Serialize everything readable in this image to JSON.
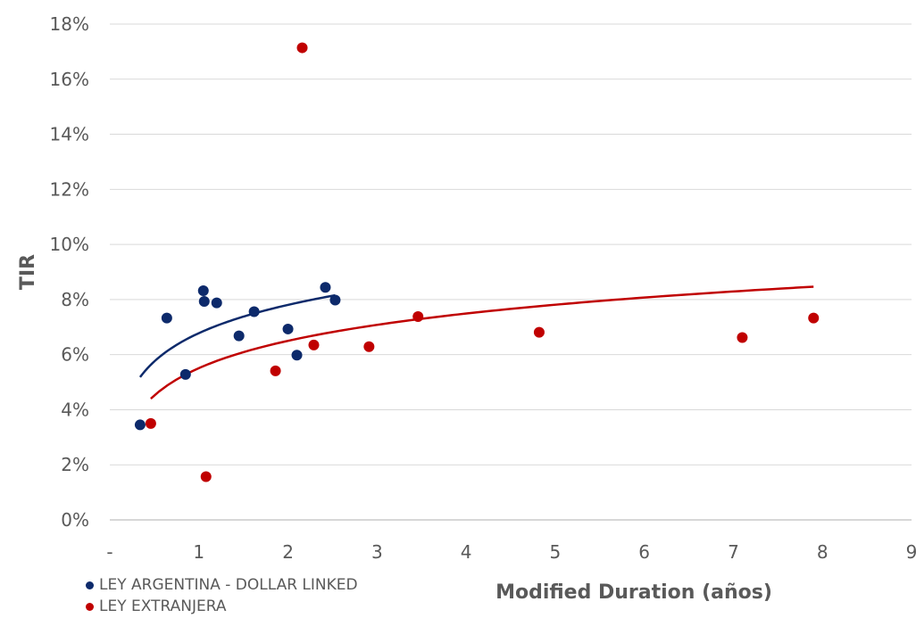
{
  "chart_data": {
    "type": "scatter",
    "xlabel": "Modified Duration (años)",
    "ylabel": "TIR",
    "xlim": [
      0,
      9
    ],
    "ylim": [
      0,
      0.18
    ],
    "x_tick_labels": [
      "-",
      "1",
      "2",
      "3",
      "4",
      "5",
      "6",
      "7",
      "8",
      "9"
    ],
    "y_tick_labels": [
      "0%",
      "2%",
      "4%",
      "6%",
      "8%",
      "10%",
      "12%",
      "14%",
      "16%",
      "18%"
    ],
    "grid": "horizontal",
    "legend_position": "bottom-left",
    "series": [
      {
        "name": "LEY ARGENTINA - DOLLAR LINKED",
        "color": "#0d2a6b",
        "points": [
          [
            0.34,
            0.0345
          ],
          [
            0.64,
            0.0733
          ],
          [
            0.85,
            0.0528
          ],
          [
            1.05,
            0.0832
          ],
          [
            1.06,
            0.0793
          ],
          [
            1.2,
            0.0788
          ],
          [
            1.45,
            0.0668
          ],
          [
            1.62,
            0.0756
          ],
          [
            2.0,
            0.0693
          ],
          [
            2.1,
            0.0598
          ],
          [
            2.42,
            0.0844
          ],
          [
            2.53,
            0.0798
          ]
        ],
        "trendline": {
          "type": "logarithmic",
          "x_range": [
            0.34,
            2.53
          ],
          "a": 0.0678,
          "b": 0.0148
        }
      },
      {
        "name": "LEY EXTRANJERA",
        "color": "#c00000",
        "points": [
          [
            0.46,
            0.035
          ],
          [
            1.08,
            0.0157
          ],
          [
            1.86,
            0.0541
          ],
          [
            2.16,
            0.1714
          ],
          [
            2.29,
            0.0635
          ],
          [
            2.91,
            0.0629
          ],
          [
            3.46,
            0.0738
          ],
          [
            4.82,
            0.0681
          ],
          [
            7.1,
            0.0662
          ],
          [
            7.9,
            0.0733
          ]
        ],
        "trendline": {
          "type": "logarithmic",
          "x_range": [
            0.46,
            7.9
          ],
          "a": 0.0551,
          "b": 0.0143
        }
      }
    ]
  }
}
